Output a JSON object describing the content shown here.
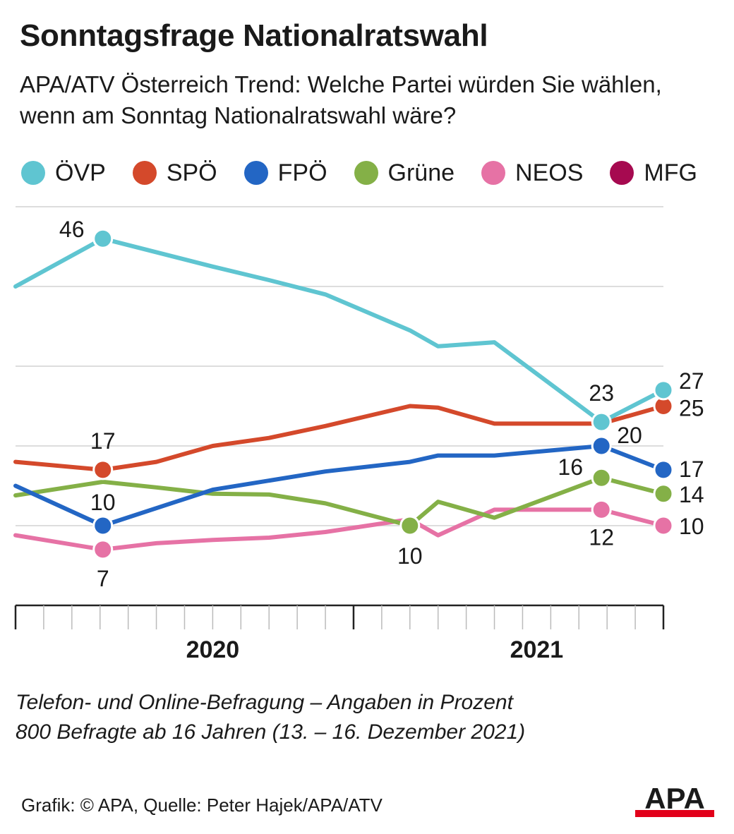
{
  "title": "Sonntagsfrage Nationalratswahl",
  "subtitle": "APA/ATV Österreich Trend: Welche Partei würden Sie wählen, wenn am Sonntag Nationalratswahl wäre?",
  "note_lines": [
    "Telefon- und Online-Befragung – Angaben in Prozent",
    "800 Befragte ab 16 Jahren (13. – 16. Dezember 2021)"
  ],
  "credit": "Grafik: © APA, Quelle: Peter Hajek/APA/ATV",
  "logo_text": "APA",
  "colors": {
    "accent_red": "#e2001a",
    "grid": "#dddddd",
    "axis": "#222222"
  },
  "chart_data": {
    "type": "line",
    "x_unit": "month index from start of axis (axis spans ~23 monthly ticks)",
    "x_range": [
      0,
      23
    ],
    "ylim": [
      0,
      50
    ],
    "y_gridlines": [
      10,
      20,
      30,
      40,
      50
    ],
    "grid": true,
    "legend_position": "top",
    "year_labels": [
      {
        "label": "2020",
        "x": 7
      },
      {
        "label": "2021",
        "x": 18.5
      }
    ],
    "series": [
      {
        "name": "ÖVP",
        "color": "#5fc5d1",
        "x": [
          0,
          3.1,
          7,
          9,
          11,
          14,
          15,
          17,
          20.8,
          23
        ],
        "y": [
          40,
          46,
          42.5,
          40.8,
          39,
          34.5,
          32.5,
          33,
          23,
          27
        ],
        "markers": [
          1,
          8,
          9
        ],
        "labels": [
          {
            "i": 1,
            "text": "46"
          },
          {
            "i": 8,
            "text": "23"
          },
          {
            "i": 9,
            "text": "27"
          }
        ]
      },
      {
        "name": "SPÖ",
        "color": "#d4492b",
        "x": [
          0,
          3.1,
          5,
          7,
          9,
          11,
          14,
          15,
          17,
          20.8,
          23
        ],
        "y": [
          18,
          17,
          18,
          20,
          21,
          22.5,
          25,
          24.8,
          22.8,
          22.8,
          25
        ],
        "markers": [
          1,
          10
        ],
        "labels": [
          {
            "i": 1,
            "text": "17"
          },
          {
            "i": 10,
            "text": "25"
          }
        ]
      },
      {
        "name": "FPÖ",
        "color": "#2366c4",
        "x": [
          0,
          3.1,
          7,
          11,
          14,
          15,
          17,
          20.8,
          23
        ],
        "y": [
          15,
          10,
          14.5,
          16.8,
          18,
          18.8,
          18.8,
          20,
          17
        ],
        "markers": [
          1,
          7,
          8
        ],
        "labels": [
          {
            "i": 1,
            "text": "10"
          },
          {
            "i": 7,
            "text": "20"
          },
          {
            "i": 8,
            "text": "17"
          }
        ]
      },
      {
        "name": "Grüne",
        "color": "#84b047",
        "x": [
          0,
          3.1,
          5,
          7,
          9,
          11,
          14,
          15,
          17,
          20.8,
          23
        ],
        "y": [
          13.8,
          15.5,
          14.8,
          14,
          13.9,
          12.8,
          10,
          13,
          11,
          16,
          14
        ],
        "markers": [
          6,
          9,
          10
        ],
        "labels": [
          {
            "i": 6,
            "text": "10"
          },
          {
            "i": 9,
            "text": "16"
          },
          {
            "i": 10,
            "text": "14"
          }
        ]
      },
      {
        "name": "NEOS",
        "color": "#e672a5",
        "x": [
          0,
          3.1,
          5,
          7,
          9,
          11,
          14,
          15,
          17,
          20.8,
          23
        ],
        "y": [
          8.8,
          7,
          7.8,
          8.2,
          8.5,
          9.2,
          10.8,
          8.8,
          12,
          12,
          10
        ],
        "markers": [
          1,
          9,
          10
        ],
        "labels": [
          {
            "i": 1,
            "text": "7"
          },
          {
            "i": 9,
            "text": "12"
          },
          {
            "i": 10,
            "text": "10"
          }
        ]
      },
      {
        "name": "MFG",
        "color": "#a60a50",
        "x": [],
        "y": [],
        "markers": [],
        "labels": []
      }
    ]
  }
}
